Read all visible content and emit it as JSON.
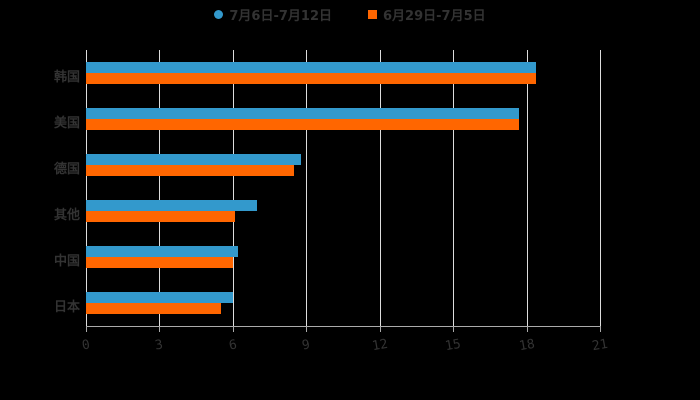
{
  "colors": {
    "series1": "#3399cc",
    "series2": "#ff6600"
  },
  "legend": [
    {
      "label": "7月6日-7月12日",
      "shape": "circle"
    },
    {
      "label": "6月29日-7月5日",
      "shape": "square"
    }
  ],
  "chart_data": {
    "type": "bar",
    "orientation": "horizontal",
    "title": "",
    "categories": [
      "韩国",
      "美国",
      "德国",
      "其他",
      "中国",
      "日本"
    ],
    "series": [
      {
        "name": "7月6日-7月12日",
        "values": [
          18.4,
          17.7,
          8.8,
          7.0,
          6.2,
          6.0
        ]
      },
      {
        "name": "6月29日-7月5日",
        "values": [
          18.4,
          17.7,
          8.5,
          6.1,
          6.0,
          5.5
        ]
      }
    ],
    "xlabel": "",
    "ylabel": "",
    "xlim": [
      0,
      21
    ],
    "xticks": [
      "0",
      "3",
      "6",
      "9",
      "12",
      "15",
      "18",
      "21"
    ],
    "grid": true,
    "legend_position": "top"
  }
}
